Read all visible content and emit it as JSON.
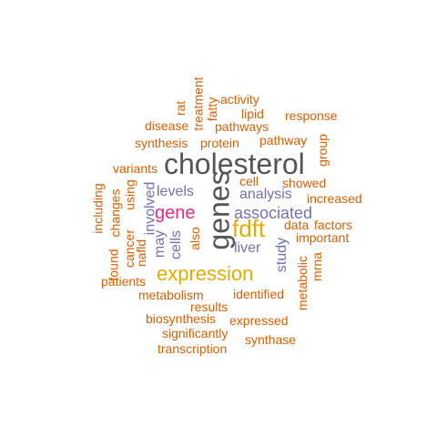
{
  "words": {
    "cholesterol": "cholesterol",
    "genes": "genes",
    "expression": "expression",
    "fdft": "fdft",
    "gene": "gene",
    "associated": "associated",
    "analysis": "analysis",
    "levels": "levels",
    "liver": "liver",
    "involved": "involved",
    "may": "may",
    "cells": "cells",
    "study": "study",
    "also": "also",
    "cell": "cell",
    "rat": "rat",
    "treatment": "treatment",
    "fatty": "fatty",
    "activity": "activity",
    "lipid": "lipid",
    "response": "response",
    "disease": "disease",
    "pathways": "pathways",
    "pathway": "pathway",
    "group": "group",
    "synthesis": "synthesis",
    "protein": "protein",
    "variants": "variants",
    "showed": "showed",
    "increased": "increased",
    "using": "using",
    "including": "including",
    "changes": "changes",
    "found": "found",
    "cancer": "cancer",
    "nafld": "nafld",
    "data": "data",
    "factors": "factors",
    "important": "important",
    "patients": "patients",
    "metabolic": "metabolic",
    "mrna": "mrna",
    "metabolism": "metabolism",
    "identified": "identified",
    "results": "results",
    "biosynthesis": "biosynthesis",
    "expressed": "expressed",
    "significantly": "significantly",
    "synthase": "synthase",
    "transcription": "transcription"
  },
  "colors": {
    "small": "#d95f02",
    "medium": "#7570b3",
    "gold": "#e6ab02",
    "magenta": "#e7298a",
    "dark": "#555555"
  }
}
